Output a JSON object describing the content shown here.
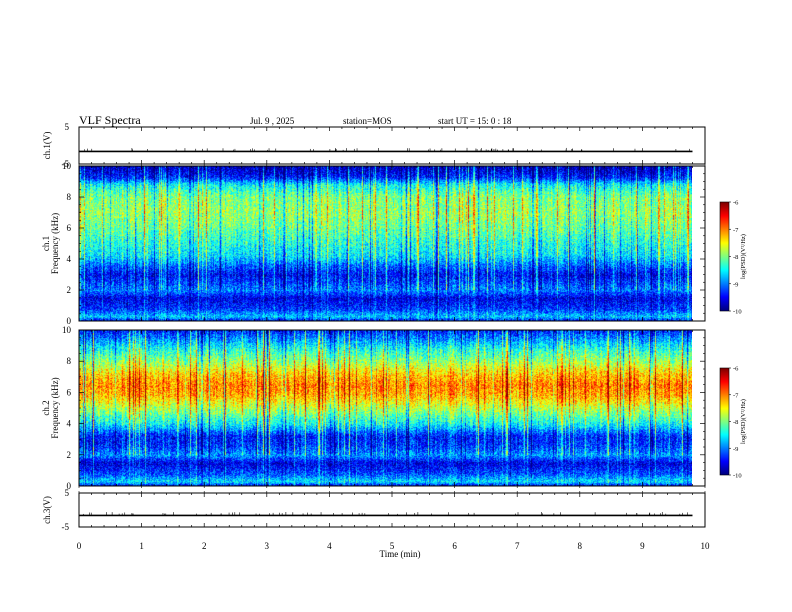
{
  "header": {
    "title": "VLF Spectra",
    "date": "Jul. 9 , 2025",
    "station": "station=MOS",
    "start": "start UT = 15: 0 : 18"
  },
  "chart_data": [
    {
      "type": "line",
      "panel": "ch1 waveform",
      "ylabel": "ch.1(V)",
      "ylim": [
        -5,
        5
      ],
      "yticks": [
        "5",
        "-5"
      ],
      "xlim": [
        0,
        10
      ],
      "baseline_value": -1.6,
      "x_end": 9.8
    },
    {
      "type": "heatmap",
      "panel": "ch1 spectrogram",
      "ylabel": "ch.1\nFrequency (kHz)",
      "ylim": [
        0,
        10
      ],
      "yticks": [
        "0",
        "2",
        "4",
        "6",
        "8",
        "10"
      ],
      "xlim": [
        0,
        10
      ],
      "x_end": 9.8,
      "colorbar": {
        "label": "log(PSD)(V²/Hz)",
        "range": [
          -10,
          -6
        ],
        "ticks": [
          "-6",
          "-7",
          "-8",
          "-9",
          "-10"
        ]
      },
      "profile_by_freq_khz": {
        "freq": [
          0,
          0.3,
          0.8,
          1.5,
          2.0,
          2.6,
          3.0,
          3.6,
          4.2,
          5.0,
          6.0,
          7.0,
          8.0,
          8.8,
          9.3,
          10.0
        ],
        "log_psd": [
          -9.6,
          -8.7,
          -9.3,
          -9.6,
          -9.0,
          -9.3,
          -9.5,
          -9.1,
          -8.6,
          -8.4,
          -8.1,
          -7.9,
          -8.0,
          -8.5,
          -9.4,
          -9.8
        ]
      }
    },
    {
      "type": "heatmap",
      "panel": "ch2 spectrogram",
      "ylabel": "ch.2\nFrequency (kHz)",
      "ylim": [
        0,
        10
      ],
      "yticks": [
        "0",
        "2",
        "4",
        "6",
        "8",
        "10"
      ],
      "xlim": [
        0,
        10
      ],
      "x_end": 9.8,
      "colorbar": {
        "label": "log(PSD)(V²/Hz)",
        "range": [
          -10,
          -6
        ],
        "ticks": [
          "-6",
          "-7",
          "-8",
          "-9",
          "-10"
        ]
      },
      "profile_by_freq_khz": {
        "freq": [
          0,
          0.3,
          0.8,
          1.5,
          2.0,
          2.6,
          3.2,
          4.0,
          5.0,
          5.8,
          6.5,
          7.2,
          8.0,
          8.8,
          9.4,
          10.0
        ],
        "log_psd": [
          -9.6,
          -8.6,
          -9.2,
          -9.6,
          -8.9,
          -9.3,
          -9.4,
          -8.5,
          -7.8,
          -7.2,
          -7.0,
          -7.3,
          -7.9,
          -8.4,
          -8.9,
          -9.4
        ]
      }
    },
    {
      "type": "line",
      "panel": "ch3 waveform",
      "ylabel": "ch.3(V)",
      "ylim": [
        -5,
        5
      ],
      "yticks": [
        "5",
        "-5"
      ],
      "xlim": [
        0,
        10
      ],
      "baseline_value": -1.6,
      "x_end": 9.8
    }
  ],
  "xaxis": {
    "label": "Time (min)",
    "ticks": [
      "0",
      "1",
      "2",
      "3",
      "4",
      "5",
      "6",
      "7",
      "8",
      "9",
      "10"
    ]
  }
}
